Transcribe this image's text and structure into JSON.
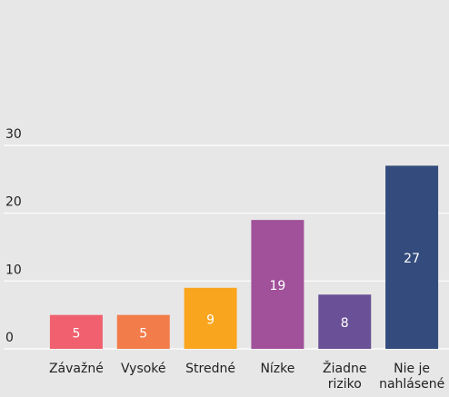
{
  "chart_data": {
    "type": "bar",
    "categories": [
      "Závažné",
      "Vysoké",
      "Stredné",
      "Nízke",
      "Žiadne riziko",
      "Nie je nahlásené"
    ],
    "values": [
      5,
      5,
      9,
      19,
      8,
      27
    ],
    "colors": [
      "#f0606e",
      "#f27c4a",
      "#f9a51e",
      "#a0519a",
      "#6a5096",
      "#334c7d"
    ],
    "ylim": [
      0,
      30
    ],
    "yticks": [
      0,
      10,
      20,
      30
    ],
    "grid": true
  }
}
